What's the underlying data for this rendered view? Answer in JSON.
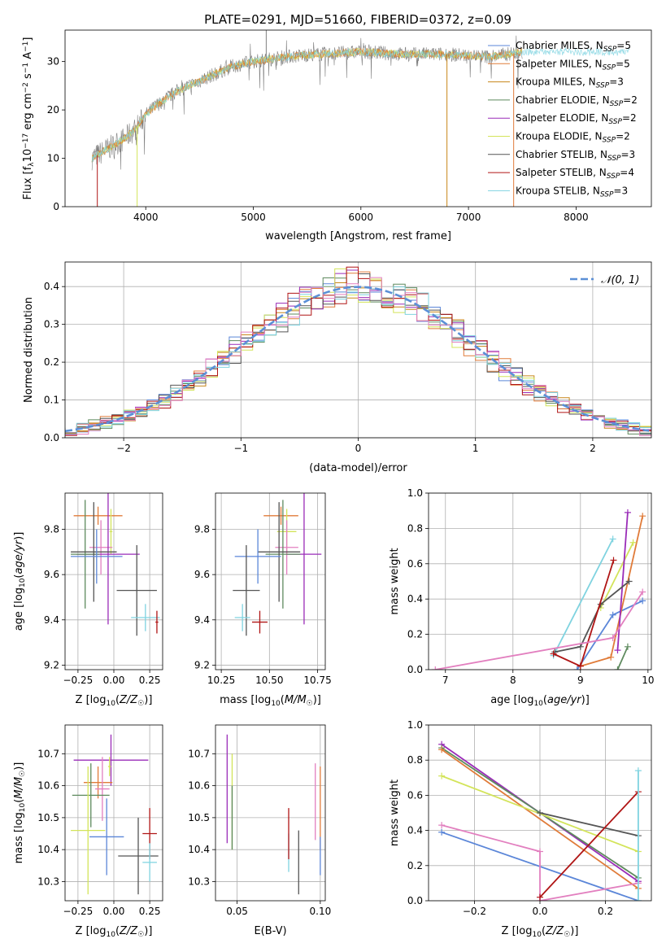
{
  "figure_title": "PLATE=0291, MJD=51660, FIBERID=0372, z=0.09",
  "colors": {
    "Chabrier MILES": "#5b86d8",
    "Salpeter MILES": "#e07b39",
    "Kroupa MILES": "#c8861a",
    "Chabrier ELODIE": "#5e8a5e",
    "Salpeter ELODIE": "#9a2cb8",
    "Kroupa ELODIE": "#d3e45a",
    "Chabrier STELIB": "#555555",
    "Salpeter STELIB": "#b01515",
    "Kroupa STELIB": "#7fd3e0",
    "extra_pink": "#e27fbf",
    "normal_curve": "#5b8fd6",
    "data": "#808080"
  },
  "chart_data": [
    {
      "id": "spectrum",
      "type": "line",
      "title": "PLATE=0291, MJD=51660, FIBERID=0372, z=0.09",
      "xlabel": "wavelength [Angstrom, rest frame]",
      "ylabel": "Flux [f_λ10^-17 erg cm^-2 s^-1 A^-1]",
      "xlim": [
        3250,
        8700
      ],
      "ylim": [
        0,
        36.5
      ],
      "xticks": [
        4000,
        5000,
        6000,
        7000,
        8000
      ],
      "yticks": [
        0,
        10,
        20,
        30
      ],
      "legend_position": "top-right",
      "legend": [
        {
          "name": "Chabrier MILES",
          "nssp": "5"
        },
        {
          "name": "Salpeter MILES",
          "nssp": "5"
        },
        {
          "name": "Kroupa MILES",
          "nssp": "3"
        },
        {
          "name": "Chabrier ELODIE",
          "nssp": "2"
        },
        {
          "name": "Salpeter ELODIE",
          "nssp": "2"
        },
        {
          "name": "Kroupa ELODIE",
          "nssp": "2"
        },
        {
          "name": "Chabrier STELIB",
          "nssp": "3"
        },
        {
          "name": "Salpeter STELIB",
          "nssp": "4"
        },
        {
          "name": "Kroupa STELIB",
          "nssp": "3"
        }
      ],
      "continuum": {
        "x": [
          3500,
          3650,
          3800,
          3900,
          4000,
          4100,
          4300,
          4500,
          4800,
          5000,
          5300,
          5600,
          6000,
          6400,
          6800,
          7200,
          7500
        ],
        "y": [
          10,
          12,
          14,
          16,
          19,
          21,
          24,
          26,
          29,
          30,
          31,
          31.5,
          32,
          31.5,
          31.5,
          31,
          32
        ]
      },
      "spikes": [
        {
          "x": 3550,
          "y": 0,
          "series": "Salpeter STELIB"
        },
        {
          "x": 3920,
          "y": 0,
          "series": "Kroupa ELODIE"
        },
        {
          "x": 5120,
          "y": 36.5,
          "series": "data"
        },
        {
          "x": 6800,
          "y": 0,
          "series": "Kroupa MILES"
        },
        {
          "x": 7420,
          "y": 0,
          "series": "Salpeter MILES"
        }
      ]
    },
    {
      "id": "residuals",
      "type": "area",
      "xlabel": "(data-model)/error",
      "ylabel": "Normed distribution",
      "xlim": [
        -2.5,
        2.5
      ],
      "ylim": [
        0,
        0.465
      ],
      "xticks": [
        -2,
        -1,
        0,
        1,
        2
      ],
      "yticks": [
        0.0,
        0.1,
        0.2,
        0.3,
        0.4
      ],
      "legend_position": "top-right",
      "normal_label": "𝒩(0, 1)",
      "bin_width": 0.1
    },
    {
      "id": "age_vs_Z",
      "type": "scatter",
      "xlabel": "Z [log10(Z/Z☉)]",
      "ylabel": "age  [log10(age/yr)]",
      "xlim": [
        -0.34,
        0.34
      ],
      "ylim": [
        9.18,
        9.96
      ],
      "xticks": [
        -0.25,
        0.0,
        0.25
      ],
      "xtick_labels": [
        "−0.25",
        "0.00",
        "0.25"
      ],
      "yticks": [
        9.2,
        9.4,
        9.6,
        9.8
      ],
      "points": [
        {
          "series": "Salpeter MILES",
          "x": -0.11,
          "xerr": 0.17,
          "y": 9.86,
          "yerr": 0.04
        },
        {
          "series": "Kroupa ELODIE",
          "x": -0.02,
          "xerr": 0.01,
          "y": 9.79,
          "yerr": 0.1
        },
        {
          "series": "extra_pink",
          "x": -0.09,
          "xerr": 0.08,
          "y": 9.72,
          "yerr": 0.12
        },
        {
          "series": "Salpeter ELODIE",
          "x": -0.04,
          "xerr": 0.22,
          "y": 9.69,
          "yerr": 0.31
        },
        {
          "series": "Chabrier ELODIE",
          "x": -0.2,
          "xerr": 0.1,
          "y": 9.69,
          "yerr": 0.24
        },
        {
          "series": "Chabrier STELIB",
          "x": -0.14,
          "xerr": 0.16,
          "y": 9.7,
          "yerr": 0.22
        },
        {
          "series": "Chabrier MILES",
          "x": -0.12,
          "xerr": 0.18,
          "y": 9.68,
          "yerr": 0.12
        },
        {
          "series": "Chabrier STELIB",
          "x": 0.16,
          "xerr": 0.14,
          "y": 9.53,
          "yerr": 0.2
        },
        {
          "series": "Kroupa STELIB",
          "x": 0.22,
          "xerr": 0.1,
          "y": 9.41,
          "yerr": 0.06
        },
        {
          "series": "Salpeter STELIB",
          "x": 0.3,
          "xerr": 0.01,
          "y": 9.39,
          "yerr": 0.05
        }
      ]
    },
    {
      "id": "age_vs_mass",
      "type": "scatter",
      "xlabel": "mass [log10(M/M☉)]",
      "ylabel": "",
      "xlim": [
        10.22,
        10.79
      ],
      "ylim": [
        9.18,
        9.96
      ],
      "xticks": [
        10.25,
        10.5,
        10.75
      ],
      "xtick_labels": [
        "10.25",
        "10.50",
        "10.75"
      ],
      "yticks": [
        9.2,
        9.4,
        9.6,
        9.8
      ],
      "points": [
        {
          "series": "Salpeter MILES",
          "x": 10.56,
          "xerr": 0.09,
          "y": 9.86,
          "yerr": 0.04
        },
        {
          "series": "Kroupa ELODIE",
          "x": 10.59,
          "xerr": 0.05,
          "y": 9.79,
          "yerr": 0.1
        },
        {
          "series": "extra_pink",
          "x": 10.59,
          "xerr": 0.06,
          "y": 9.72,
          "yerr": 0.12
        },
        {
          "series": "Salpeter ELODIE",
          "x": 10.68,
          "xerr": 0.09,
          "y": 9.69,
          "yerr": 0.31
        },
        {
          "series": "Chabrier ELODIE",
          "x": 10.57,
          "xerr": 0.09,
          "y": 9.69,
          "yerr": 0.24
        },
        {
          "series": "Chabrier STELIB",
          "x": 10.55,
          "xerr": 0.11,
          "y": 9.7,
          "yerr": 0.22
        },
        {
          "series": "Chabrier MILES",
          "x": 10.44,
          "xerr": 0.12,
          "y": 9.68,
          "yerr": 0.12
        },
        {
          "series": "Chabrier STELIB",
          "x": 10.38,
          "xerr": 0.07,
          "y": 9.53,
          "yerr": 0.2
        },
        {
          "series": "Kroupa STELIB",
          "x": 10.36,
          "xerr": 0.04,
          "y": 9.41,
          "yerr": 0.06
        },
        {
          "series": "Salpeter STELIB",
          "x": 10.45,
          "xerr": 0.04,
          "y": 9.39,
          "yerr": 0.05
        }
      ]
    },
    {
      "id": "massweight_vs_age",
      "type": "line",
      "xlabel": "age  [log10(age/yr)]",
      "ylabel": "mass weight",
      "xlim": [
        6.75,
        10.05
      ],
      "ylim": [
        0,
        1.0
      ],
      "xticks": [
        7,
        8,
        9,
        10
      ],
      "yticks": [
        0.0,
        0.2,
        0.4,
        0.6,
        0.8,
        1.0
      ],
      "yticks_format": "1",
      "series": [
        {
          "series": "Chabrier MILES",
          "x": [
            8.95,
            9.48,
            9.92
          ],
          "y": [
            0.0,
            0.31,
            0.39
          ]
        },
        {
          "series": "Salpeter MILES",
          "x": [
            9.0,
            9.45,
            9.92
          ],
          "y": [
            0.02,
            0.07,
            0.87
          ]
        },
        {
          "series": "Kroupa ELODIE",
          "x": [
            9.3,
            9.78
          ],
          "y": [
            0.35,
            0.72
          ]
        },
        {
          "series": "Kroupa STELIB",
          "x": [
            8.6,
            9.48
          ],
          "y": [
            0.08,
            0.74
          ]
        },
        {
          "series": "Chabrier ELODIE",
          "x": [
            9.55,
            9.7
          ],
          "y": [
            0.0,
            0.13
          ]
        },
        {
          "series": "Salpeter ELODIE",
          "x": [
            9.55,
            9.7
          ],
          "y": [
            0.11,
            0.89
          ]
        },
        {
          "series": "Chabrier STELIB",
          "x": [
            8.62,
            9.0,
            9.3,
            9.72
          ],
          "y": [
            0.1,
            0.13,
            0.37,
            0.5
          ]
        },
        {
          "series": "Salpeter STELIB",
          "x": [
            8.6,
            9.0,
            9.49
          ],
          "y": [
            0.09,
            0.02,
            0.62
          ]
        },
        {
          "series": "extra_pink",
          "x": [
            6.85,
            9.48,
            9.92
          ],
          "y": [
            0.0,
            0.18,
            0.44
          ]
        }
      ]
    },
    {
      "id": "mass_vs_Z",
      "type": "scatter",
      "xlabel": "Z [log10(Z/Z☉)]",
      "ylabel": "mass [log10(M/M☉)]",
      "xlim": [
        -0.34,
        0.34
      ],
      "ylim": [
        10.24,
        10.79
      ],
      "xticks": [
        -0.25,
        0.0,
        0.25
      ],
      "xtick_labels": [
        "−0.25",
        "0.00",
        "0.25"
      ],
      "yticks": [
        10.3,
        10.4,
        10.5,
        10.6,
        10.7
      ],
      "points": [
        {
          "series": "Salpeter ELODIE",
          "x": -0.02,
          "xerr": 0.26,
          "y": 10.68,
          "yerr": 0.08
        },
        {
          "series": "Kroupa ELODIE",
          "x": -0.03,
          "xerr": 0.01,
          "y": 10.66,
          "yerr": 0.03
        },
        {
          "series": "Salpeter MILES",
          "x": -0.11,
          "xerr": 0.1,
          "y": 10.61,
          "yerr": 0.05
        },
        {
          "series": "extra_pink",
          "x": -0.08,
          "xerr": 0.05,
          "y": 10.59,
          "yerr": 0.1
        },
        {
          "series": "Chabrier ELODIE",
          "x": -0.16,
          "xerr": 0.13,
          "y": 10.57,
          "yerr": 0.1
        },
        {
          "series": "Kroupa ELODIE",
          "x": -0.18,
          "xerr": 0.12,
          "y": 10.46,
          "yerr": 0.2
        },
        {
          "series": "Chabrier MILES",
          "x": -0.05,
          "xerr": 0.12,
          "y": 10.44,
          "yerr": 0.12
        },
        {
          "series": "Salpeter STELIB",
          "x": 0.25,
          "xerr": 0.05,
          "y": 10.45,
          "yerr": 0.08
        },
        {
          "series": "Chabrier STELIB",
          "x": 0.17,
          "xerr": 0.14,
          "y": 10.38,
          "yerr": 0.12
        },
        {
          "series": "Kroupa STELIB",
          "x": 0.25,
          "xerr": 0.05,
          "y": 10.36,
          "yerr": 0.06
        }
      ]
    },
    {
      "id": "mass_vs_EBV",
      "type": "scatter",
      "xlabel": "E(B-V)",
      "ylabel": "",
      "xlim": [
        0.037,
        0.103
      ],
      "ylim": [
        10.24,
        10.79
      ],
      "xticks": [
        0.05,
        0.1
      ],
      "xtick_labels": [
        "0.05",
        "0.10"
      ],
      "yticks": [
        10.3,
        10.4,
        10.5,
        10.6,
        10.7
      ],
      "points": [
        {
          "series": "Salpeter ELODIE",
          "x": 0.044,
          "xerr": 0,
          "y": 10.59,
          "yerr": 0.17
        },
        {
          "series": "Kroupa ELODIE",
          "x": 0.047,
          "xerr": 0,
          "y": 10.55,
          "yerr": 0.15
        },
        {
          "series": "Chabrier ELODIE",
          "x": 0.047,
          "xerr": 0,
          "y": 10.5,
          "yerr": 0.1
        },
        {
          "series": "Kroupa STELIB",
          "x": 0.081,
          "xerr": 0,
          "y": 10.39,
          "yerr": 0.06
        },
        {
          "series": "Salpeter STELIB",
          "x": 0.081,
          "xerr": 0,
          "y": 10.45,
          "yerr": 0.08
        },
        {
          "series": "Chabrier STELIB",
          "x": 0.087,
          "xerr": 0,
          "y": 10.36,
          "yerr": 0.1
        },
        {
          "series": "extra_pink",
          "x": 0.097,
          "xerr": 0,
          "y": 10.55,
          "yerr": 0.12
        },
        {
          "series": "Salpeter MILES",
          "x": 0.1,
          "xerr": 0,
          "y": 10.53,
          "yerr": 0.13
        },
        {
          "series": "Chabrier MILES",
          "x": 0.1,
          "xerr": 0,
          "y": 10.38,
          "yerr": 0.06
        }
      ]
    },
    {
      "id": "massweight_vs_Z",
      "type": "line",
      "xlabel": "Z [log10(Z/Z☉)]",
      "ylabel": "mass weight",
      "xlim": [
        -0.34,
        0.34
      ],
      "ylim": [
        0,
        1.0
      ],
      "xticks": [
        -0.2,
        0.0,
        0.2
      ],
      "xtick_labels": [
        "−0.2",
        "0.0",
        "0.2"
      ],
      "yticks": [
        0.0,
        0.2,
        0.4,
        0.6,
        0.8,
        1.0
      ],
      "series": [
        {
          "series": "Salpeter ELODIE",
          "x": [
            -0.3,
            0.3
          ],
          "y": [
            0.89,
            0.11
          ]
        },
        {
          "series": "Chabrier ELODIE",
          "x": [
            -0.3,
            0.3
          ],
          "y": [
            0.87,
            0.13
          ]
        },
        {
          "series": "Salpeter MILES",
          "x": [
            -0.3,
            0.3
          ],
          "y": [
            0.86,
            0.07
          ]
        },
        {
          "series": "Kroupa ELODIE",
          "x": [
            -0.3,
            0.3
          ],
          "y": [
            0.71,
            0.28
          ]
        },
        {
          "series": "Chabrier STELIB",
          "x": [
            0.0,
            0.3
          ],
          "y": [
            0.5,
            0.37
          ]
        },
        {
          "series": "Chabrier MILES",
          "x": [
            -0.3,
            0.3
          ],
          "y": [
            0.39,
            0.0
          ]
        },
        {
          "series": "extra_pink",
          "x": [
            -0.3,
            0.0,
            0.0,
            0.3
          ],
          "y": [
            0.43,
            0.28,
            0.0,
            0.1
          ]
        },
        {
          "series": "Salpeter STELIB",
          "x": [
            0.0,
            0.3
          ],
          "y": [
            0.02,
            0.62
          ]
        },
        {
          "series": "Kroupa STELIB",
          "x": [
            0.3,
            0.3
          ],
          "y": [
            0.0,
            0.74
          ]
        }
      ]
    }
  ]
}
